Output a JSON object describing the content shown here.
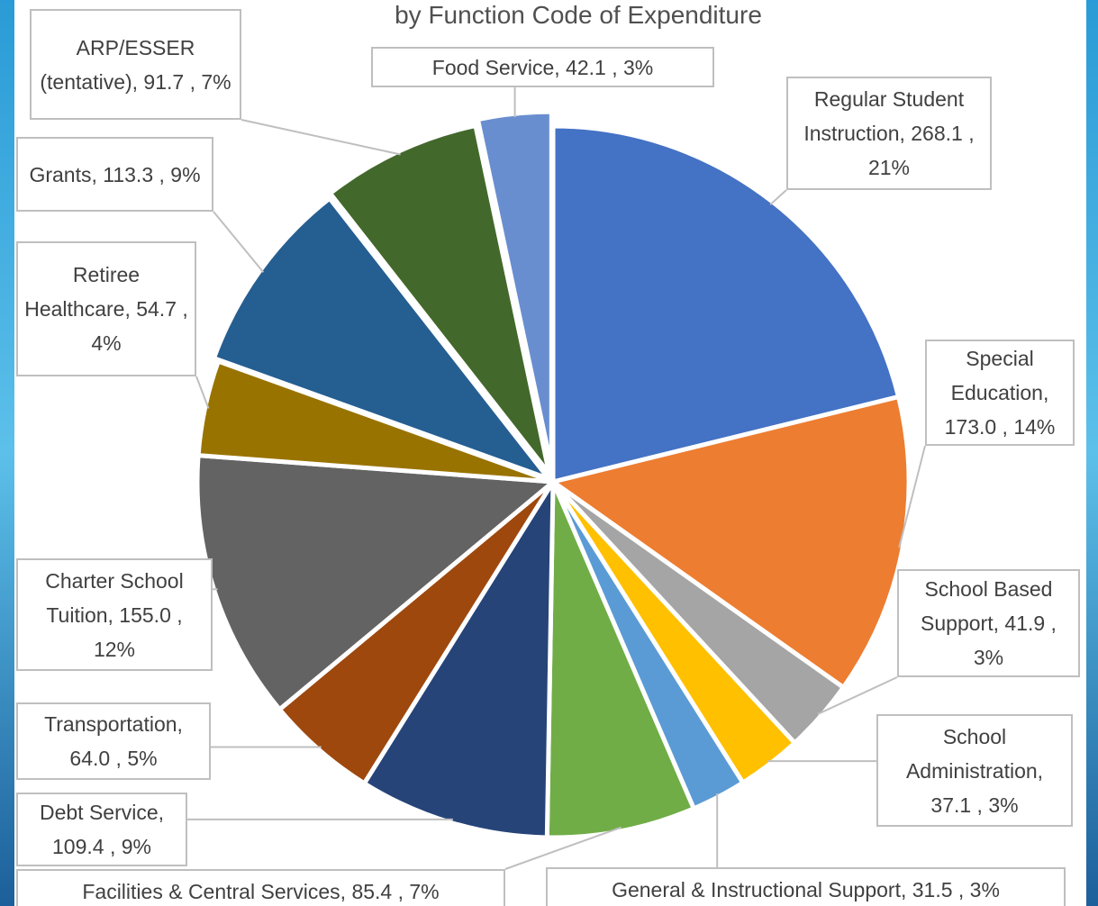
{
  "chart_data": {
    "type": "pie",
    "title": "by Function Code of Expenditure",
    "values": [
      268.1,
      173.0,
      41.9,
      37.1,
      31.5,
      85.4,
      109.4,
      64.0,
      155.0,
      54.7,
      113.3,
      91.7,
      42.1
    ],
    "value_labels": [
      "Regular Student Instruction, 268.1 , 21%",
      "Special Education, 173.0 , 14%",
      "School Based Support, 41.9 , 3%",
      "School Administration, 37.1 , 3%",
      "General & Instructional Support, 31.5 , 3%",
      "Facilities & Central Services, 85.4 , 7%",
      "Debt Service, 109.4 , 9%",
      "Transportation, 64.0 , 5%",
      "Charter School Tuition, 155.0 , 12%",
      "Retiree Healthcare, 54.7 , 4%",
      "Grants, 113.3 , 9%",
      "ARP/ESSER (tentative), 91.7 , 7%",
      "Food Service, 42.1 , 3%"
    ],
    "colors": [
      "#4472c4",
      "#ed7d31",
      "#a5a5a5",
      "#ffc000",
      "#5b9bd5",
      "#70ad47",
      "#264478",
      "#9e480e",
      "#636363",
      "#997300",
      "#255e91",
      "#43682b",
      "#698ed0"
    ]
  }
}
